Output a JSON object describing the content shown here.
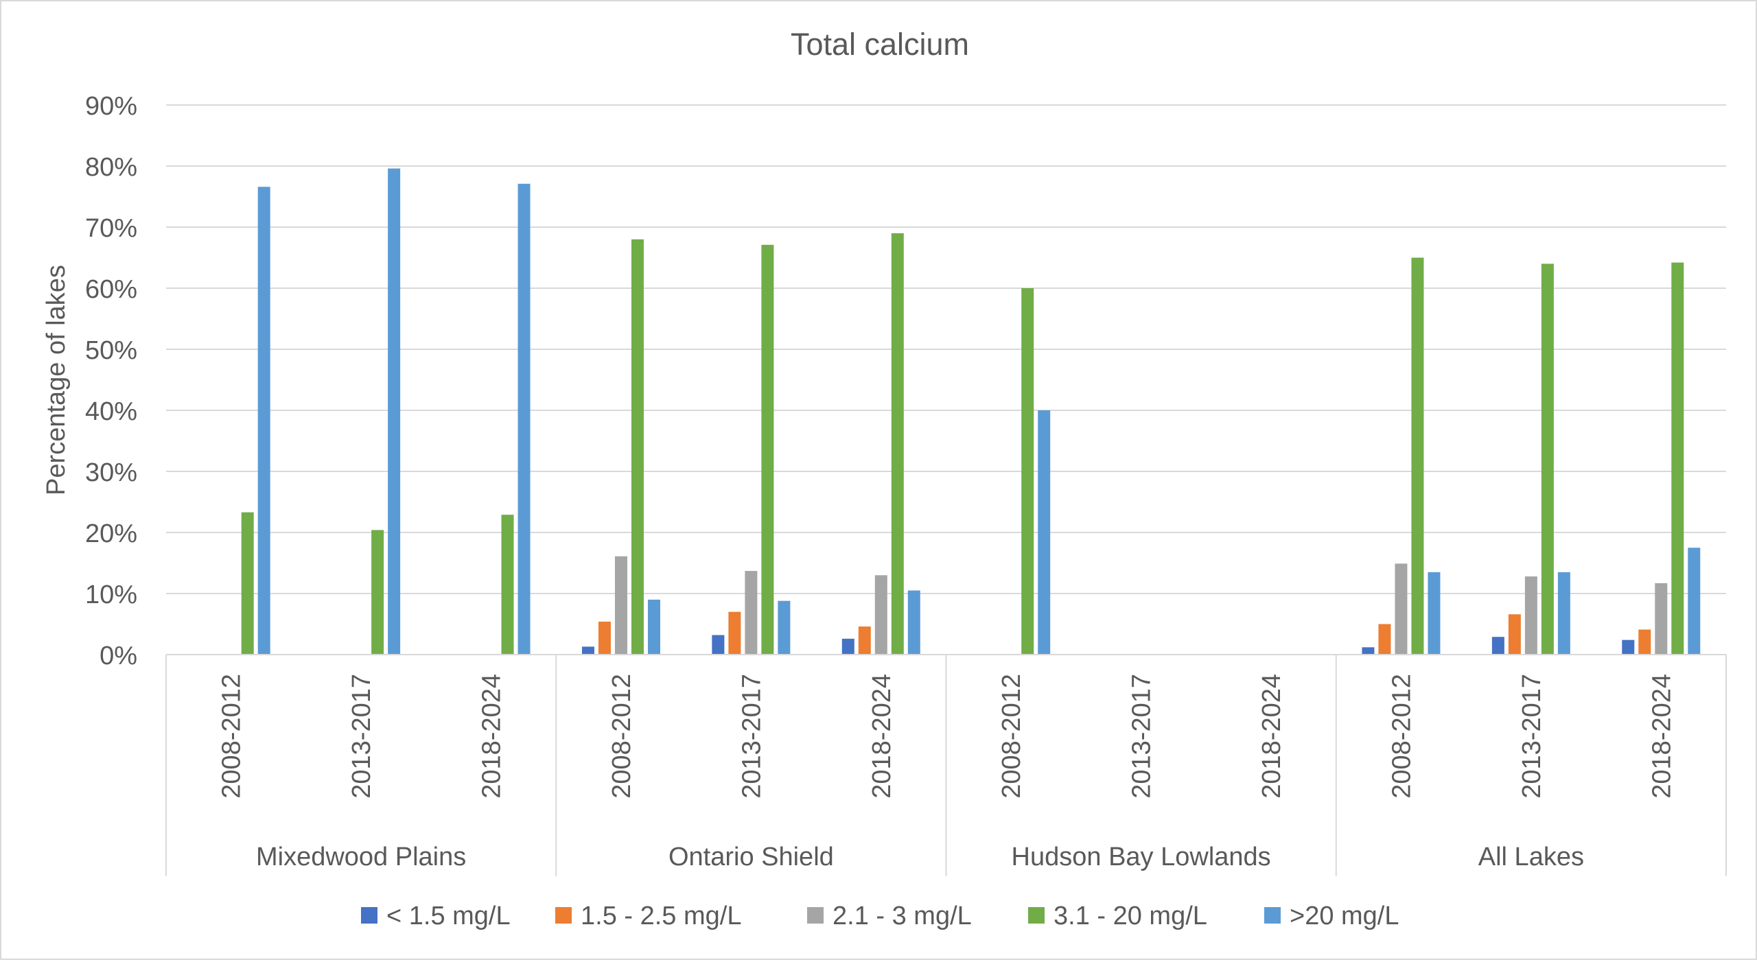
{
  "chart_data": {
    "type": "bar",
    "title": "Total calcium",
    "ylabel": "Percentage of lakes",
    "xlabel": "",
    "ylim": [
      0,
      90
    ],
    "y_ticks": [
      "0%",
      "10%",
      "20%",
      "30%",
      "40%",
      "50%",
      "60%",
      "70%",
      "80%",
      "90%"
    ],
    "grid": true,
    "legend_position": "bottom",
    "groups": [
      {
        "name": "Mixedwood Plains",
        "periods": [
          "2008-2012",
          "2013-2017",
          "2018-2024"
        ]
      },
      {
        "name": "Ontario Shield",
        "periods": [
          "2008-2012",
          "2013-2017",
          "2018-2024"
        ]
      },
      {
        "name": "Hudson Bay Lowlands",
        "periods": [
          "2008-2012",
          "2013-2017",
          "2018-2024"
        ]
      },
      {
        "name": "All Lakes",
        "periods": [
          "2008-2012",
          "2013-2017",
          "2018-2024"
        ]
      }
    ],
    "series": [
      {
        "name": "< 1.5 mg/L",
        "color": "#4472c4",
        "values": [
          0,
          0,
          0,
          1.3,
          3.2,
          2.6,
          0,
          0,
          0,
          1.2,
          2.9,
          2.4
        ]
      },
      {
        "name": "1.5 - 2.5 mg/L",
        "color": "#ed7d31",
        "values": [
          0,
          0,
          0,
          5.4,
          7.0,
          4.6,
          0,
          0,
          0,
          5.0,
          6.6,
          4.1
        ]
      },
      {
        "name": "2.1 - 3 mg/L",
        "color": "#a5a5a5",
        "values": [
          0,
          0,
          0,
          16.1,
          13.7,
          13.0,
          0,
          0,
          0,
          14.9,
          12.8,
          11.7
        ]
      },
      {
        "name": "3.1 - 20 mg/L",
        "color": "#70ad47",
        "values": [
          23.3,
          20.4,
          22.9,
          68.0,
          67.1,
          69.0,
          60.0,
          0,
          0,
          65.0,
          64.0,
          64.2
        ]
      },
      {
        "name": ">20 mg/L",
        "color": "#5b9bd5",
        "values": [
          76.6,
          79.6,
          77.1,
          9.0,
          8.8,
          10.5,
          40.0,
          0,
          0,
          13.5,
          13.5,
          17.5
        ]
      }
    ]
  }
}
